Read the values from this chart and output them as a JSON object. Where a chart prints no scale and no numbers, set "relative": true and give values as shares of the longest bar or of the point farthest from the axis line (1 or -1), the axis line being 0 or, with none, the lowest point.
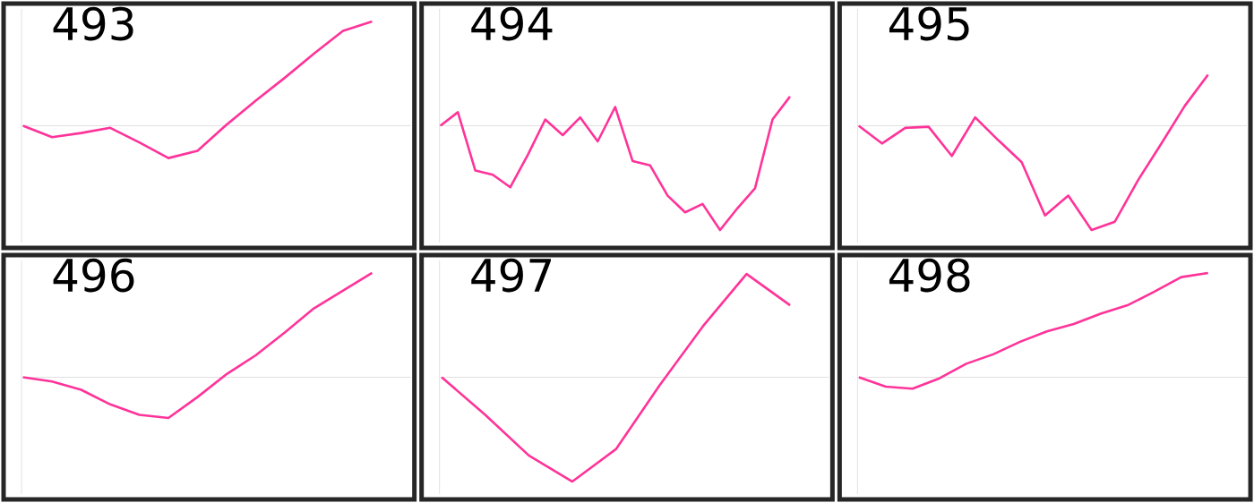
{
  "chart_data": [
    {
      "type": "line",
      "title": "493",
      "relative": true,
      "color": "#ff3399",
      "categories": [
        null,
        null,
        null,
        null,
        null,
        null,
        null,
        null,
        null,
        null,
        null,
        null,
        null
      ],
      "values": [
        0,
        -0.11,
        -0.07,
        -0.02,
        -0.16,
        -0.31,
        -0.24,
        0.01,
        0.24,
        0.46,
        0.69,
        0.91,
        1
      ]
    },
    {
      "type": "line",
      "title": "494",
      "relative": true,
      "color": "#ff3399",
      "categories": [
        null,
        null,
        null,
        null,
        null,
        null,
        null,
        null,
        null,
        null,
        null,
        null,
        null,
        null,
        null,
        null,
        null,
        null,
        null,
        null,
        null
      ],
      "values": [
        0,
        0.13,
        -0.43,
        -0.47,
        -0.59,
        -0.28,
        0.06,
        -0.09,
        0.08,
        -0.15,
        0.18,
        -0.34,
        -0.38,
        -0.67,
        -0.83,
        -0.75,
        -1,
        -0.79,
        -0.6,
        0.06,
        0.28
      ]
    },
    {
      "type": "line",
      "title": "495",
      "relative": true,
      "color": "#ff3399",
      "categories": [
        null,
        null,
        null,
        null,
        null,
        null,
        null,
        null,
        null,
        null,
        null,
        null,
        null,
        null,
        null,
        null
      ],
      "values": [
        0,
        -0.17,
        -0.02,
        -0.01,
        -0.29,
        0.08,
        -0.14,
        -0.35,
        -0.86,
        -0.67,
        -1,
        -0.92,
        -0.52,
        -0.17,
        0.19,
        0.49
      ]
    },
    {
      "type": "line",
      "title": "496",
      "relative": true,
      "color": "#ff3399",
      "categories": [
        null,
        null,
        null,
        null,
        null,
        null,
        null,
        null,
        null,
        null,
        null,
        null,
        null
      ],
      "values": [
        0,
        -0.04,
        -0.12,
        -0.26,
        -0.36,
        -0.39,
        -0.19,
        0.03,
        0.21,
        0.43,
        0.66,
        0.83,
        1
      ]
    },
    {
      "type": "line",
      "title": "497",
      "relative": true,
      "color": "#ff3399",
      "categories": [
        null,
        null,
        null,
        null,
        null,
        null,
        null,
        null,
        null
      ],
      "values": [
        0,
        -0.36,
        -0.75,
        -1,
        -0.69,
        -0.08,
        0.49,
        0.99,
        0.69
      ]
    },
    {
      "type": "line",
      "title": "498",
      "relative": true,
      "color": "#ff3399",
      "categories": [
        null,
        null,
        null,
        null,
        null,
        null,
        null,
        null,
        null,
        null,
        null,
        null,
        null,
        null
      ],
      "values": [
        0,
        -0.09,
        -0.11,
        -0.01,
        0.13,
        0.22,
        0.34,
        0.44,
        0.51,
        0.61,
        0.69,
        0.82,
        0.96,
        1
      ]
    }
  ]
}
